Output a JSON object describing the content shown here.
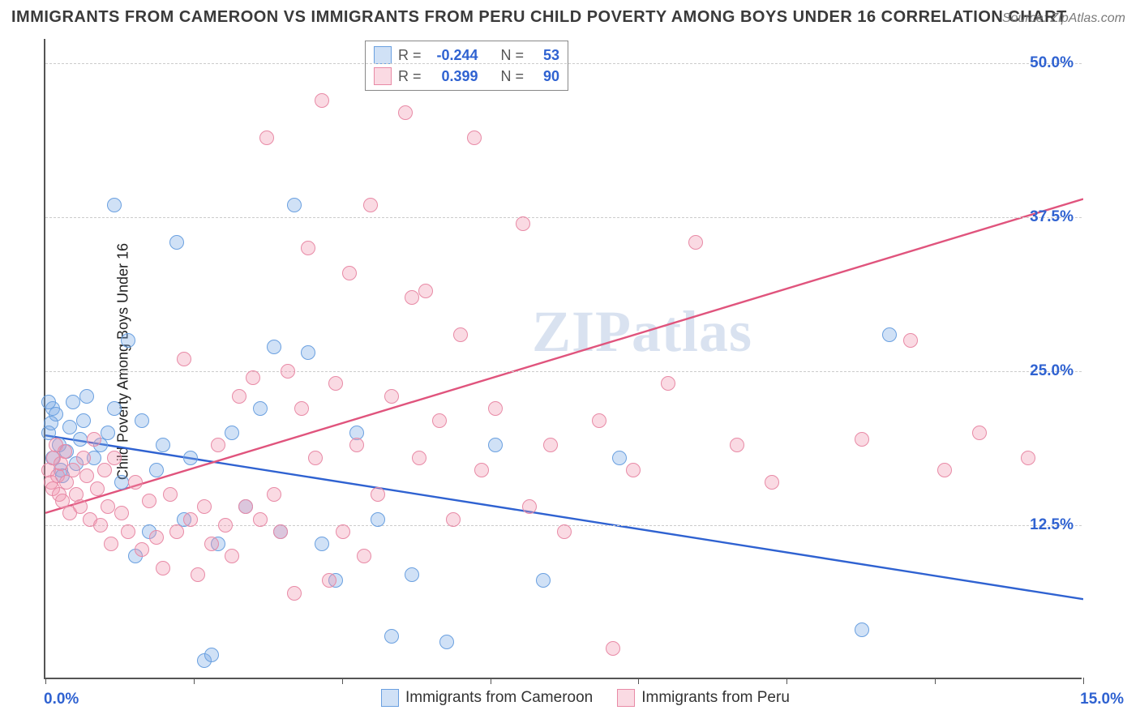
{
  "title": "IMMIGRANTS FROM CAMEROON VS IMMIGRANTS FROM PERU CHILD POVERTY AMONG BOYS UNDER 16 CORRELATION CHART",
  "source_prefix": "Source:",
  "source_name": "ZipAtlas.com",
  "ylabel": "Child Poverty Among Boys Under 16",
  "watermark": "ZIPatlas",
  "chart": {
    "type": "scatter",
    "xlim": [
      0,
      15
    ],
    "ylim": [
      0,
      52
    ],
    "xtick_positions": [
      0,
      2.14,
      4.29,
      6.43,
      8.57,
      10.71,
      12.86,
      15
    ],
    "ytick_positions": [
      12.5,
      25,
      37.5,
      50
    ],
    "ytick_labels": [
      "12.5%",
      "25.0%",
      "37.5%",
      "50.0%"
    ],
    "x_left_label": "0.0%",
    "x_right_label": "15.0%",
    "grid_color": "#cccccc",
    "axis_color": "#555555",
    "tick_color": "#2f62d1",
    "marker_radius": 9,
    "marker_border": 1.5,
    "series": [
      {
        "name": "Immigrants from Cameroon",
        "fill": "rgba(120,170,230,0.35)",
        "stroke": "#6aa0e0",
        "line_color": "#2f62d1",
        "line_width": 2.4,
        "R": "-0.244",
        "N": "53",
        "trend": {
          "x1": 0,
          "y1": 19.8,
          "x2": 15,
          "y2": 6.5
        },
        "points": [
          [
            0.05,
            20
          ],
          [
            0.1,
            22
          ],
          [
            0.1,
            18
          ],
          [
            0.15,
            21.5
          ],
          [
            0.2,
            19
          ],
          [
            0.22,
            17
          ],
          [
            0.25,
            16.5
          ],
          [
            0.3,
            18.5
          ],
          [
            0.35,
            20.5
          ],
          [
            0.4,
            22.5
          ],
          [
            0.45,
            17.5
          ],
          [
            0.5,
            19.5
          ],
          [
            0.55,
            21
          ],
          [
            0.6,
            23
          ],
          [
            0.7,
            18
          ],
          [
            0.8,
            19
          ],
          [
            0.9,
            20
          ],
          [
            1.0,
            22
          ],
          [
            1.0,
            38.5
          ],
          [
            1.1,
            16
          ],
          [
            1.2,
            27.5
          ],
          [
            1.3,
            10
          ],
          [
            1.4,
            21
          ],
          [
            1.5,
            12
          ],
          [
            1.6,
            17
          ],
          [
            1.7,
            19
          ],
          [
            1.9,
            35.5
          ],
          [
            2.0,
            13
          ],
          [
            2.1,
            18
          ],
          [
            2.3,
            1.5
          ],
          [
            2.4,
            2
          ],
          [
            2.5,
            11
          ],
          [
            2.7,
            20
          ],
          [
            2.9,
            14
          ],
          [
            3.1,
            22
          ],
          [
            3.3,
            27
          ],
          [
            3.4,
            12
          ],
          [
            3.6,
            38.5
          ],
          [
            3.8,
            26.5
          ],
          [
            4.0,
            11
          ],
          [
            4.2,
            8
          ],
          [
            4.5,
            20
          ],
          [
            4.8,
            13
          ],
          [
            5.0,
            3.5
          ],
          [
            5.3,
            8.5
          ],
          [
            5.8,
            3
          ],
          [
            6.5,
            19
          ],
          [
            7.2,
            8
          ],
          [
            8.3,
            18
          ],
          [
            11.8,
            4
          ],
          [
            12.2,
            28
          ],
          [
            0.05,
            22.5
          ],
          [
            0.08,
            20.8
          ]
        ]
      },
      {
        "name": "Immigrants from Peru",
        "fill": "rgba(240,150,175,0.35)",
        "stroke": "#e88aa6",
        "line_color": "#e0547d",
        "line_width": 2.4,
        "R": "0.399",
        "N": "90",
        "trend": {
          "x1": 0,
          "y1": 13.5,
          "x2": 15,
          "y2": 39.0
        },
        "points": [
          [
            0.05,
            17
          ],
          [
            0.08,
            16
          ],
          [
            0.1,
            15.5
          ],
          [
            0.12,
            18
          ],
          [
            0.15,
            19
          ],
          [
            0.18,
            16.5
          ],
          [
            0.2,
            15
          ],
          [
            0.22,
            17.5
          ],
          [
            0.25,
            14.5
          ],
          [
            0.28,
            18.5
          ],
          [
            0.3,
            16
          ],
          [
            0.35,
            13.5
          ],
          [
            0.4,
            17
          ],
          [
            0.45,
            15
          ],
          [
            0.5,
            14
          ],
          [
            0.55,
            18
          ],
          [
            0.6,
            16.5
          ],
          [
            0.65,
            13
          ],
          [
            0.7,
            19.5
          ],
          [
            0.75,
            15.5
          ],
          [
            0.8,
            12.5
          ],
          [
            0.85,
            17
          ],
          [
            0.9,
            14
          ],
          [
            0.95,
            11
          ],
          [
            1.0,
            18
          ],
          [
            1.1,
            13.5
          ],
          [
            1.2,
            12
          ],
          [
            1.3,
            16
          ],
          [
            1.4,
            10.5
          ],
          [
            1.5,
            14.5
          ],
          [
            1.6,
            11.5
          ],
          [
            1.7,
            9
          ],
          [
            1.8,
            15
          ],
          [
            1.9,
            12
          ],
          [
            2.0,
            26
          ],
          [
            2.1,
            13
          ],
          [
            2.2,
            8.5
          ],
          [
            2.3,
            14
          ],
          [
            2.4,
            11
          ],
          [
            2.5,
            19
          ],
          [
            2.6,
            12.5
          ],
          [
            2.7,
            10
          ],
          [
            2.8,
            23
          ],
          [
            2.9,
            14
          ],
          [
            3.0,
            24.5
          ],
          [
            3.1,
            13
          ],
          [
            3.2,
            44
          ],
          [
            3.3,
            15
          ],
          [
            3.4,
            12
          ],
          [
            3.5,
            25
          ],
          [
            3.6,
            7
          ],
          [
            3.7,
            22
          ],
          [
            3.8,
            35
          ],
          [
            3.9,
            18
          ],
          [
            4.0,
            47
          ],
          [
            4.1,
            8
          ],
          [
            4.2,
            24
          ],
          [
            4.3,
            12
          ],
          [
            4.4,
            33
          ],
          [
            4.5,
            19
          ],
          [
            4.6,
            10
          ],
          [
            4.7,
            38.5
          ],
          [
            4.8,
            15
          ],
          [
            5.0,
            23
          ],
          [
            5.2,
            46
          ],
          [
            5.3,
            31
          ],
          [
            5.4,
            18
          ],
          [
            5.5,
            31.5
          ],
          [
            5.7,
            21
          ],
          [
            5.9,
            13
          ],
          [
            6.0,
            28
          ],
          [
            6.2,
            44
          ],
          [
            6.3,
            17
          ],
          [
            6.5,
            22
          ],
          [
            6.9,
            37
          ],
          [
            7.0,
            14
          ],
          [
            7.3,
            19
          ],
          [
            7.5,
            12
          ],
          [
            8.0,
            21
          ],
          [
            8.2,
            2.5
          ],
          [
            8.5,
            17
          ],
          [
            9.0,
            24
          ],
          [
            9.4,
            35.5
          ],
          [
            10.0,
            19
          ],
          [
            10.5,
            16
          ],
          [
            11.8,
            19.5
          ],
          [
            12.5,
            27.5
          ],
          [
            13.0,
            17
          ],
          [
            13.5,
            20
          ],
          [
            14.2,
            18
          ]
        ]
      }
    ]
  },
  "legend_top": {
    "R_label": "R =",
    "N_label": "N ="
  },
  "legend_bottom": {}
}
